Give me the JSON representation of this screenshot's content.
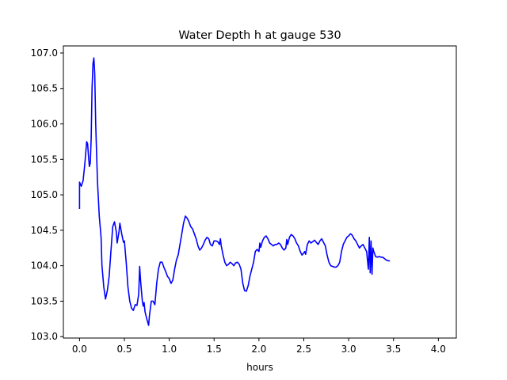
{
  "chart_data": {
    "type": "line",
    "title": "Water Depth h at gauge 530",
    "xlabel": "hours",
    "ylabel": "",
    "xlim": [
      -0.18,
      4.2
    ],
    "ylim": [
      102.98,
      107.1
    ],
    "grid": false,
    "x_ticks": [
      {
        "value": 0.0,
        "label": "0.0"
      },
      {
        "value": 0.5,
        "label": "0.5"
      },
      {
        "value": 1.0,
        "label": "1.0"
      },
      {
        "value": 1.5,
        "label": "1.5"
      },
      {
        "value": 2.0,
        "label": "2.0"
      },
      {
        "value": 2.5,
        "label": "2.5"
      },
      {
        "value": 3.0,
        "label": "3.0"
      },
      {
        "value": 3.5,
        "label": "3.5"
      },
      {
        "value": 4.0,
        "label": "4.0"
      }
    ],
    "y_ticks": [
      {
        "value": 103.0,
        "label": "103.0"
      },
      {
        "value": 103.5,
        "label": "103.5"
      },
      {
        "value": 104.0,
        "label": "104.0"
      },
      {
        "value": 104.5,
        "label": "104.5"
      },
      {
        "value": 105.0,
        "label": "105.0"
      },
      {
        "value": 105.5,
        "label": "105.5"
      },
      {
        "value": 106.0,
        "label": "106.0"
      },
      {
        "value": 106.5,
        "label": "106.5"
      },
      {
        "value": 107.0,
        "label": "107.0"
      }
    ],
    "series": [
      {
        "color": "#0000ff",
        "points": [
          [
            0.0,
            104.8
          ],
          [
            0.0,
            105.18
          ],
          [
            0.02,
            105.12
          ],
          [
            0.04,
            105.2
          ],
          [
            0.06,
            105.45
          ],
          [
            0.08,
            105.75
          ],
          [
            0.09,
            105.72
          ],
          [
            0.1,
            105.55
          ],
          [
            0.11,
            105.4
          ],
          [
            0.12,
            105.45
          ],
          [
            0.13,
            105.8
          ],
          [
            0.14,
            106.5
          ],
          [
            0.15,
            106.85
          ],
          [
            0.16,
            106.93
          ],
          [
            0.17,
            106.7
          ],
          [
            0.18,
            106.0
          ],
          [
            0.2,
            105.2
          ],
          [
            0.22,
            104.7
          ],
          [
            0.24,
            104.4
          ],
          [
            0.25,
            104.0
          ],
          [
            0.27,
            103.7
          ],
          [
            0.29,
            103.53
          ],
          [
            0.31,
            103.65
          ],
          [
            0.33,
            103.85
          ],
          [
            0.35,
            104.2
          ],
          [
            0.37,
            104.55
          ],
          [
            0.39,
            104.62
          ],
          [
            0.41,
            104.48
          ],
          [
            0.42,
            104.32
          ],
          [
            0.44,
            104.48
          ],
          [
            0.45,
            104.6
          ],
          [
            0.47,
            104.45
          ],
          [
            0.49,
            104.33
          ],
          [
            0.5,
            104.35
          ],
          [
            0.52,
            104.05
          ],
          [
            0.54,
            103.7
          ],
          [
            0.56,
            103.5
          ],
          [
            0.58,
            103.4
          ],
          [
            0.6,
            103.37
          ],
          [
            0.62,
            103.45
          ],
          [
            0.64,
            103.44
          ],
          [
            0.66,
            103.6
          ],
          [
            0.67,
            103.99
          ],
          [
            0.68,
            103.8
          ],
          [
            0.69,
            103.65
          ],
          [
            0.7,
            103.5
          ],
          [
            0.71,
            103.43
          ],
          [
            0.72,
            103.48
          ],
          [
            0.73,
            103.35
          ],
          [
            0.75,
            103.25
          ],
          [
            0.77,
            103.16
          ],
          [
            0.78,
            103.3
          ],
          [
            0.8,
            103.5
          ],
          [
            0.82,
            103.5
          ],
          [
            0.84,
            103.45
          ],
          [
            0.86,
            103.75
          ],
          [
            0.88,
            103.95
          ],
          [
            0.9,
            104.05
          ],
          [
            0.92,
            104.05
          ],
          [
            0.94,
            103.98
          ],
          [
            0.96,
            103.92
          ],
          [
            0.98,
            103.85
          ],
          [
            1.0,
            103.82
          ],
          [
            1.02,
            103.75
          ],
          [
            1.04,
            103.8
          ],
          [
            1.06,
            103.95
          ],
          [
            1.08,
            104.08
          ],
          [
            1.1,
            104.15
          ],
          [
            1.12,
            104.3
          ],
          [
            1.14,
            104.45
          ],
          [
            1.16,
            104.6
          ],
          [
            1.18,
            104.7
          ],
          [
            1.2,
            104.67
          ],
          [
            1.22,
            104.62
          ],
          [
            1.24,
            104.55
          ],
          [
            1.26,
            104.52
          ],
          [
            1.28,
            104.45
          ],
          [
            1.3,
            104.38
          ],
          [
            1.32,
            104.28
          ],
          [
            1.34,
            104.22
          ],
          [
            1.36,
            104.25
          ],
          [
            1.38,
            104.3
          ],
          [
            1.4,
            104.36
          ],
          [
            1.42,
            104.4
          ],
          [
            1.44,
            104.38
          ],
          [
            1.46,
            104.3
          ],
          [
            1.48,
            104.28
          ],
          [
            1.5,
            104.35
          ],
          [
            1.52,
            104.35
          ],
          [
            1.54,
            104.34
          ],
          [
            1.56,
            104.3
          ],
          [
            1.57,
            104.38
          ],
          [
            1.58,
            104.28
          ],
          [
            1.6,
            104.15
          ],
          [
            1.62,
            104.05
          ],
          [
            1.64,
            104.0
          ],
          [
            1.66,
            104.02
          ],
          [
            1.68,
            104.05
          ],
          [
            1.7,
            104.03
          ],
          [
            1.72,
            104.0
          ],
          [
            1.74,
            104.04
          ],
          [
            1.76,
            104.05
          ],
          [
            1.78,
            104.02
          ],
          [
            1.8,
            103.95
          ],
          [
            1.82,
            103.75
          ],
          [
            1.84,
            103.65
          ],
          [
            1.86,
            103.64
          ],
          [
            1.88,
            103.72
          ],
          [
            1.9,
            103.85
          ],
          [
            1.92,
            103.95
          ],
          [
            1.94,
            104.05
          ],
          [
            1.96,
            104.2
          ],
          [
            1.98,
            104.23
          ],
          [
            2.0,
            104.2
          ],
          [
            2.01,
            104.32
          ],
          [
            2.02,
            104.26
          ],
          [
            2.04,
            104.35
          ],
          [
            2.06,
            104.4
          ],
          [
            2.08,
            104.42
          ],
          [
            2.1,
            104.38
          ],
          [
            2.12,
            104.32
          ],
          [
            2.14,
            104.3
          ],
          [
            2.16,
            104.28
          ],
          [
            2.18,
            104.3
          ],
          [
            2.2,
            104.3
          ],
          [
            2.22,
            104.32
          ],
          [
            2.24,
            104.3
          ],
          [
            2.26,
            104.25
          ],
          [
            2.28,
            104.22
          ],
          [
            2.3,
            104.25
          ],
          [
            2.31,
            104.37
          ],
          [
            2.32,
            104.3
          ],
          [
            2.34,
            104.4
          ],
          [
            2.36,
            104.44
          ],
          [
            2.38,
            104.42
          ],
          [
            2.4,
            104.38
          ],
          [
            2.42,
            104.32
          ],
          [
            2.44,
            104.28
          ],
          [
            2.46,
            104.2
          ],
          [
            2.48,
            104.15
          ],
          [
            2.5,
            104.18
          ],
          [
            2.51,
            104.2
          ],
          [
            2.52,
            104.16
          ],
          [
            2.54,
            104.3
          ],
          [
            2.56,
            104.35
          ],
          [
            2.58,
            104.32
          ],
          [
            2.6,
            104.34
          ],
          [
            2.62,
            104.36
          ],
          [
            2.64,
            104.33
          ],
          [
            2.66,
            104.3
          ],
          [
            2.68,
            104.35
          ],
          [
            2.7,
            104.38
          ],
          [
            2.72,
            104.33
          ],
          [
            2.74,
            104.28
          ],
          [
            2.76,
            104.15
          ],
          [
            2.78,
            104.05
          ],
          [
            2.8,
            104.0
          ],
          [
            2.82,
            103.99
          ],
          [
            2.84,
            103.98
          ],
          [
            2.86,
            103.98
          ],
          [
            2.88,
            104.0
          ],
          [
            2.9,
            104.05
          ],
          [
            2.92,
            104.2
          ],
          [
            2.94,
            104.3
          ],
          [
            2.96,
            104.35
          ],
          [
            2.98,
            104.4
          ],
          [
            3.0,
            104.42
          ],
          [
            3.02,
            104.45
          ],
          [
            3.04,
            104.43
          ],
          [
            3.06,
            104.38
          ],
          [
            3.08,
            104.35
          ],
          [
            3.1,
            104.3
          ],
          [
            3.12,
            104.25
          ],
          [
            3.14,
            104.28
          ],
          [
            3.16,
            104.3
          ],
          [
            3.18,
            104.25
          ],
          [
            3.2,
            104.2
          ],
          [
            3.22,
            103.95
          ],
          [
            3.23,
            104.4
          ],
          [
            3.24,
            103.9
          ],
          [
            3.25,
            104.35
          ],
          [
            3.26,
            103.88
          ],
          [
            3.27,
            104.25
          ],
          [
            3.28,
            104.2
          ],
          [
            3.3,
            104.13
          ],
          [
            3.32,
            104.12
          ],
          [
            3.34,
            104.13
          ],
          [
            3.36,
            104.12
          ],
          [
            3.38,
            104.12
          ],
          [
            3.4,
            104.1
          ],
          [
            3.42,
            104.08
          ],
          [
            3.44,
            104.07
          ],
          [
            3.46,
            104.07
          ]
        ]
      }
    ]
  }
}
